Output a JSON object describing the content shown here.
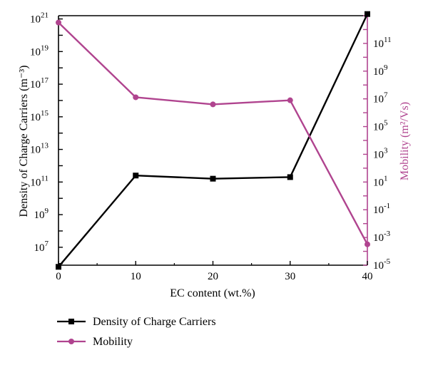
{
  "chart_data": {
    "type": "line",
    "xlabel": "EC content (wt.%)",
    "x": [
      0,
      10,
      20,
      30,
      40
    ],
    "xlim": [
      0,
      40
    ],
    "xticks": [
      "0",
      "10",
      "20",
      "30",
      "40"
    ],
    "left_axis": {
      "label": "Density of Charge Carriers (m⁻³)",
      "scale": "log",
      "ylim_exp": [
        5.9,
        21.2
      ],
      "ticks": [
        {
          "base": "10",
          "exp": "7"
        },
        {
          "base": "10",
          "exp": "9"
        },
        {
          "base": "10",
          "exp": "11"
        },
        {
          "base": "10",
          "exp": "13"
        },
        {
          "base": "10",
          "exp": "15"
        },
        {
          "base": "10",
          "exp": "17"
        },
        {
          "base": "10",
          "exp": "19"
        },
        {
          "base": "10",
          "exp": "21"
        }
      ],
      "color": "#000000"
    },
    "right_axis": {
      "label": "Mobility (m²/Vs)",
      "scale": "log",
      "ylim_exp": [
        -5,
        13
      ],
      "ticks": [
        {
          "base": "10",
          "exp": "-5"
        },
        {
          "base": "10",
          "exp": "-3"
        },
        {
          "base": "10",
          "exp": "-1"
        },
        {
          "base": "10",
          "exp": "1"
        },
        {
          "base": "10",
          "exp": "3"
        },
        {
          "base": "10",
          "exp": "5"
        },
        {
          "base": "10",
          "exp": "7"
        },
        {
          "base": "10",
          "exp": "9"
        },
        {
          "base": "10",
          "exp": "11"
        }
      ],
      "color": "#b0448f"
    },
    "series": [
      {
        "name": "Density of Charge Carriers",
        "axis": "left",
        "marker": "square",
        "color": "#000000",
        "values": [
          630000.0,
          250000000000.0,
          160000000000.0,
          200000000000.0,
          2e+21
        ]
      },
      {
        "name": "Mobility",
        "axis": "right",
        "marker": "circle",
        "color": "#b0448f",
        "values": [
          3200000000000.0,
          13000000.0,
          4000000.0,
          7900000.0,
          0.00032
        ]
      }
    ],
    "legend": {
      "position": "bottom-left",
      "entries": [
        "Density of Charge Carriers",
        "Mobility"
      ]
    },
    "grid": false
  }
}
